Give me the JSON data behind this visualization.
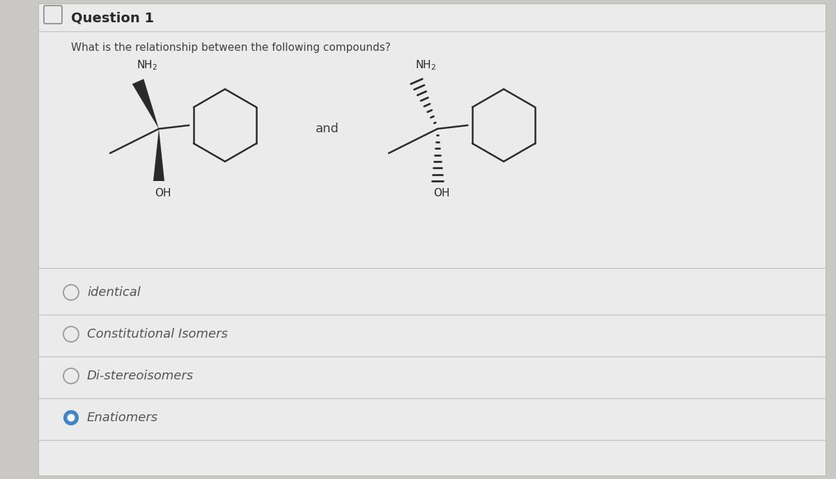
{
  "title": "Question 1",
  "question_text": "What is the relationship between the following compounds?",
  "options": [
    {
      "label": "identical",
      "selected": false
    },
    {
      "label": "Constitutional Isomers",
      "selected": false
    },
    {
      "label": "Di-stereoisomers",
      "selected": false
    },
    {
      "label": "Enatiomers",
      "selected": true
    }
  ],
  "bg_color": "#cac8c4",
  "panel_color": "#ebebeb",
  "text_color": "#404040",
  "title_color": "#2a2a2a",
  "option_text_color": "#555555",
  "selected_circle_outer": "#3d85c8",
  "selected_circle_inner": "#3d85c8",
  "divider_color": "#c0c0c0",
  "bond_color": "#2a2a2a",
  "label_color": "#2a2a2a"
}
